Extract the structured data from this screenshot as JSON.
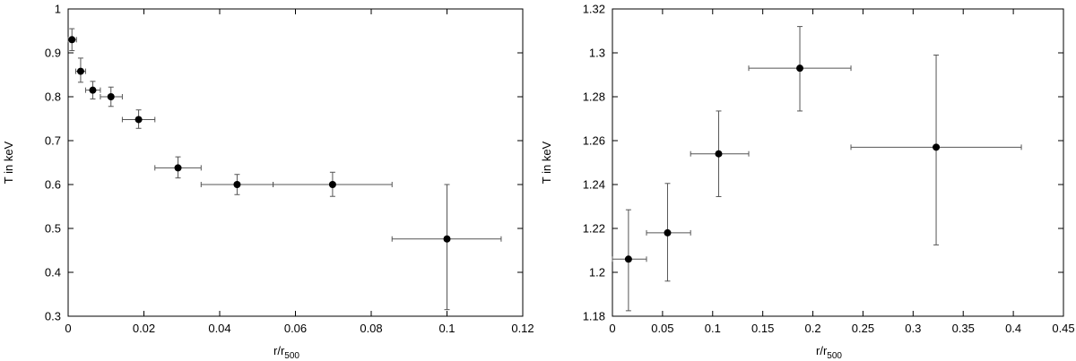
{
  "chart_data": [
    {
      "type": "scatter",
      "title": "",
      "xlabel": "r/r",
      "xlabel_sub": "500",
      "ylabel": "T in keV",
      "xlim": [
        0,
        0.12
      ],
      "ylim": [
        0.3,
        1.0
      ],
      "xticks": [
        0,
        0.02,
        0.04,
        0.06,
        0.08,
        0.1,
        0.12
      ],
      "xtick_labels": [
        "0",
        "0.02",
        "0.04",
        "0.06",
        "0.08",
        "0.1",
        "0.12"
      ],
      "yticks": [
        0.3,
        0.4,
        0.5,
        0.6,
        0.7,
        0.8,
        0.9,
        1.0
      ],
      "ytick_labels": [
        "0.3",
        "0.4",
        "0.5",
        "0.6",
        "0.7",
        "0.8",
        "0.9",
        "1"
      ],
      "grid": false,
      "points": [
        {
          "x": 0.001,
          "y": 0.93,
          "xlo": 0.0,
          "xhi": 0.0022,
          "ylo": 0.905,
          "yhi": 0.955
        },
        {
          "x": 0.0033,
          "y": 0.858,
          "xlo": 0.002,
          "xhi": 0.0046,
          "ylo": 0.833,
          "yhi": 0.888
        },
        {
          "x": 0.0065,
          "y": 0.815,
          "xlo": 0.0046,
          "xhi": 0.0085,
          "ylo": 0.795,
          "yhi": 0.835
        },
        {
          "x": 0.0113,
          "y": 0.8,
          "xlo": 0.0085,
          "xhi": 0.0143,
          "ylo": 0.778,
          "yhi": 0.822
        },
        {
          "x": 0.0186,
          "y": 0.748,
          "xlo": 0.0143,
          "xhi": 0.0229,
          "ylo": 0.728,
          "yhi": 0.77
        },
        {
          "x": 0.029,
          "y": 0.638,
          "xlo": 0.0229,
          "xhi": 0.0351,
          "ylo": 0.615,
          "yhi": 0.663
        },
        {
          "x": 0.0446,
          "y": 0.6,
          "xlo": 0.0351,
          "xhi": 0.0541,
          "ylo": 0.577,
          "yhi": 0.623
        },
        {
          "x": 0.0698,
          "y": 0.6,
          "xlo": 0.0541,
          "xhi": 0.0855,
          "ylo": 0.573,
          "yhi": 0.628
        },
        {
          "x": 0.1,
          "y": 0.476,
          "xlo": 0.0855,
          "xhi": 0.1143,
          "ylo": 0.315,
          "yhi": 0.6
        }
      ]
    },
    {
      "type": "scatter",
      "title": "",
      "xlabel": "r/r",
      "xlabel_sub": "500",
      "ylabel": "T in keV",
      "xlim": [
        0,
        0.45
      ],
      "ylim": [
        1.18,
        1.32
      ],
      "xticks": [
        0,
        0.05,
        0.1,
        0.15,
        0.2,
        0.25,
        0.3,
        0.35,
        0.4,
        0.45
      ],
      "xtick_labels": [
        "0",
        "0.05",
        "0.1",
        "0.15",
        "0.2",
        "0.25",
        "0.3",
        "0.35",
        "0.4",
        "0.45"
      ],
      "yticks": [
        1.18,
        1.2,
        1.22,
        1.24,
        1.26,
        1.28,
        1.3,
        1.32
      ],
      "ytick_labels": [
        "1.18",
        "1.2",
        "1.22",
        "1.24",
        "1.26",
        "1.28",
        "1.3",
        "1.32"
      ],
      "grid": false,
      "points": [
        {
          "x": 0.016,
          "y": 1.206,
          "xlo": 0.0,
          "xhi": 0.034,
          "ylo": 1.1825,
          "yhi": 1.2285
        },
        {
          "x": 0.055,
          "y": 1.218,
          "xlo": 0.034,
          "xhi": 0.078,
          "ylo": 1.196,
          "yhi": 1.2405
        },
        {
          "x": 0.106,
          "y": 1.254,
          "xlo": 0.078,
          "xhi": 0.136,
          "ylo": 1.2345,
          "yhi": 1.2735
        },
        {
          "x": 0.187,
          "y": 1.293,
          "xlo": 0.136,
          "xhi": 0.238,
          "ylo": 1.2735,
          "yhi": 1.312
        },
        {
          "x": 0.323,
          "y": 1.257,
          "xlo": 0.238,
          "xhi": 0.408,
          "ylo": 1.2125,
          "yhi": 1.299
        }
      ]
    }
  ]
}
